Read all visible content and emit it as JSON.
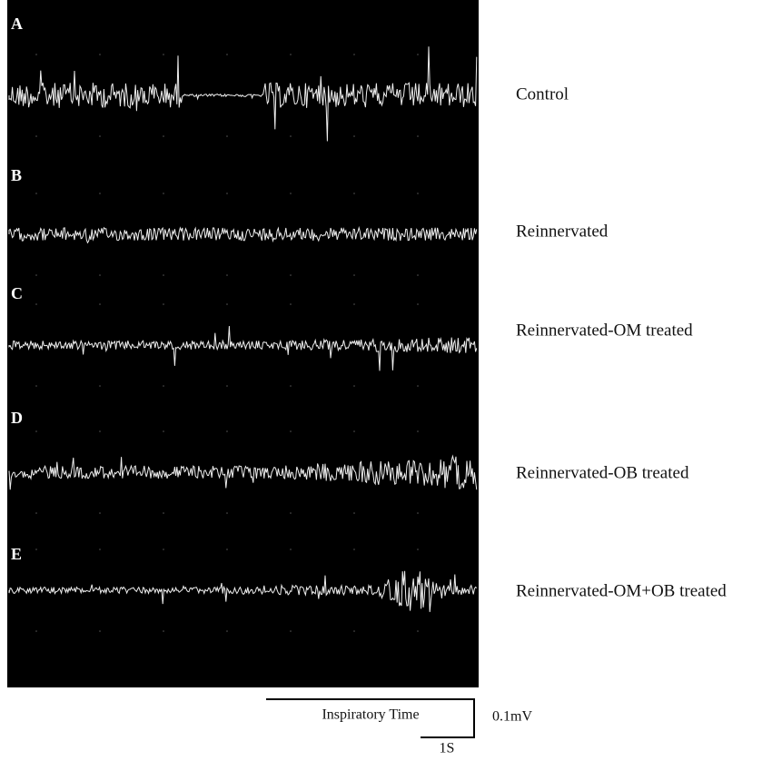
{
  "panels": [
    {
      "letter": "A",
      "label": "Control"
    },
    {
      "letter": "B",
      "label": "Reinnervated"
    },
    {
      "letter": "C",
      "label": "Reinnervated-OM treated"
    },
    {
      "letter": "D",
      "label": "Reinnervated-OB treated"
    },
    {
      "letter": "E",
      "label": "Reinnervated-OM+OB treated"
    }
  ],
  "scale": {
    "time_label": "Inspiratory Time",
    "voltage": "0.1mV",
    "duration": "1S"
  }
}
